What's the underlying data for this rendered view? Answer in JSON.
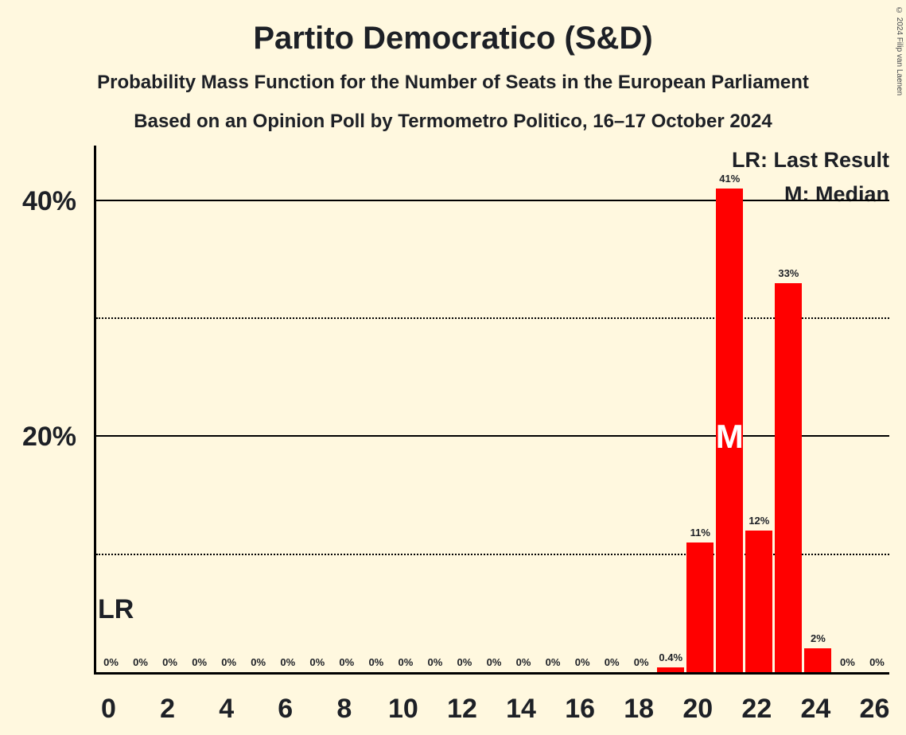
{
  "title": "Partito Democratico (S&D)",
  "subtitle_line1": "Probability Mass Function for the Number of Seats in the European Parliament",
  "subtitle_line2": "Based on an Opinion Poll by Termometro Politico, 16–17 October 2024",
  "copyright": "© 2024 Filip van Laenen",
  "legend": {
    "last_result": "LR: Last Result",
    "median": "M: Median"
  },
  "annotations": {
    "last_result_label": "LR",
    "median_label": "M",
    "median_seat": 21
  },
  "colors": {
    "background": "#FFF8DF",
    "bar": "#FF0000",
    "text": "#1D2026",
    "median_text": "#FFFFFF"
  },
  "chart_data": {
    "type": "bar",
    "title": "Partito Democratico (S&D)",
    "xlabel": "",
    "ylabel": "",
    "x": [
      0,
      1,
      2,
      3,
      4,
      5,
      6,
      7,
      8,
      9,
      10,
      11,
      12,
      13,
      14,
      15,
      16,
      17,
      18,
      19,
      20,
      21,
      22,
      23,
      24,
      25,
      26
    ],
    "values": [
      0,
      0,
      0,
      0,
      0,
      0,
      0,
      0,
      0,
      0,
      0,
      0,
      0,
      0,
      0,
      0,
      0,
      0,
      0,
      0.4,
      11,
      41,
      12,
      33,
      2,
      0,
      0
    ],
    "bar_labels": [
      "0%",
      "0%",
      "0%",
      "0%",
      "0%",
      "0%",
      "0%",
      "0%",
      "0%",
      "0%",
      "0%",
      "0%",
      "0%",
      "0%",
      "0%",
      "0%",
      "0%",
      "0%",
      "0%",
      "0.4%",
      "11%",
      "41%",
      "12%",
      "33%",
      "2%",
      "0%",
      "0%"
    ],
    "x_ticks": [
      0,
      2,
      4,
      6,
      8,
      10,
      12,
      14,
      16,
      18,
      20,
      22,
      24,
      26
    ],
    "y_ticks": [
      {
        "value": 20,
        "label": "20%"
      },
      {
        "value": 40,
        "label": "40%"
      }
    ],
    "gridlines": [
      {
        "value": 10,
        "style": "dotted"
      },
      {
        "value": 20,
        "style": "solid"
      },
      {
        "value": 30,
        "style": "dotted"
      },
      {
        "value": 40,
        "style": "solid"
      }
    ],
    "ylim": [
      0,
      44.8
    ],
    "grid": "horizontal",
    "legend_position": "top-right"
  }
}
